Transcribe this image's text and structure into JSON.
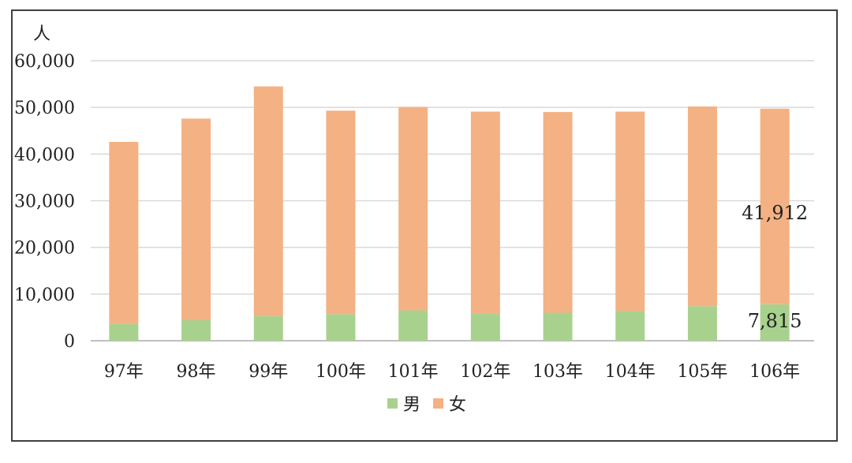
{
  "chart_data": {
    "type": "bar",
    "stacked": true,
    "title": "",
    "xlabel": "",
    "ylabel": "人",
    "ylim": [
      0,
      60000
    ],
    "yticks": [
      "0",
      "10,000",
      "20,000",
      "30,000",
      "40,000",
      "50,000",
      "60,000"
    ],
    "grid": true,
    "legend_position": "bottom",
    "categories": [
      "97年",
      "98年",
      "99年",
      "100年",
      "101年",
      "102年",
      "103年",
      "104年",
      "105年",
      "106年"
    ],
    "series": [
      {
        "name": "男",
        "color": "#a9d18e",
        "values": [
          3600,
          4400,
          5300,
          5700,
          6500,
          5900,
          6000,
          6400,
          7400,
          7815
        ]
      },
      {
        "name": "女",
        "color": "#f4b183",
        "values": [
          39000,
          43200,
          49200,
          43600,
          43600,
          43200,
          43000,
          42700,
          42800,
          41912
        ]
      }
    ],
    "data_labels": [
      {
        "category": "106年",
        "series": "女",
        "text": "41,912"
      },
      {
        "category": "106年",
        "series": "男",
        "text": "7,815"
      }
    ]
  }
}
